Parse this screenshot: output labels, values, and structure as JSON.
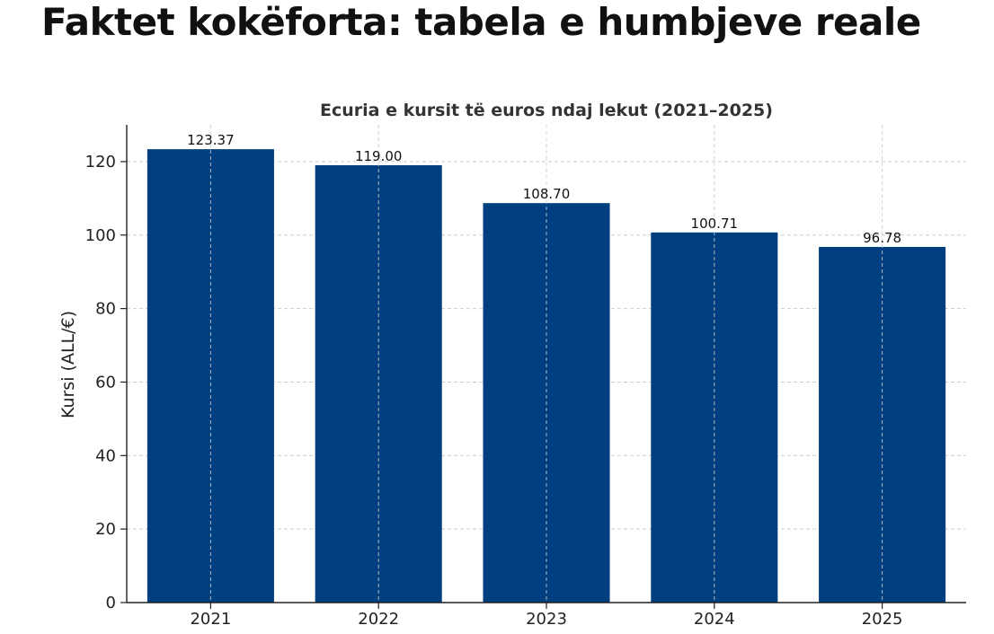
{
  "page": {
    "heading": "Faktet kokëforta: tabela e humbjeve reale"
  },
  "chart_data": {
    "type": "bar",
    "title": "Ecuria e kursit të euros ndaj lekut (2021–2025)",
    "xlabel": "",
    "ylabel": "Kursi (ALL/€)",
    "categories": [
      "2021",
      "2022",
      "2023",
      "2024",
      "2025"
    ],
    "values": [
      123.37,
      119.0,
      108.7,
      100.71,
      96.78
    ],
    "data_labels": [
      "123.37",
      "119.00",
      "108.70",
      "100.71",
      "96.78"
    ],
    "ylim": [
      0,
      130
    ],
    "yticks": [
      0,
      20,
      40,
      60,
      80,
      100,
      120
    ],
    "grid": true,
    "legend": "none",
    "bar_color": "#003f7f",
    "grid_color": "#cccccc"
  }
}
